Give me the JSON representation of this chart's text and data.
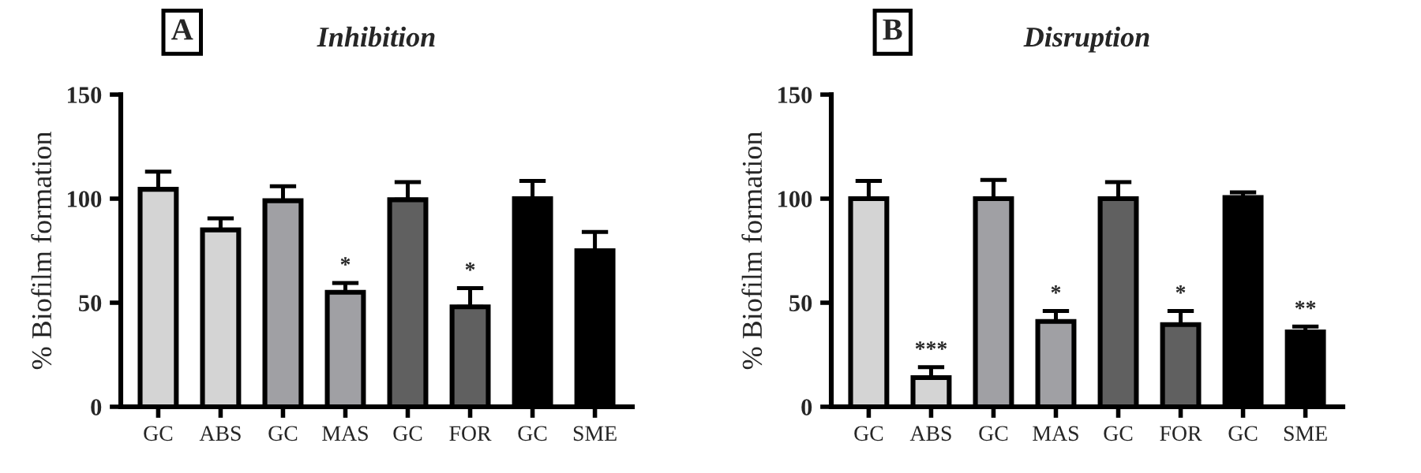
{
  "chart_data": [
    {
      "type": "bar",
      "title": "Inhibition",
      "ylabel": "% Biofilm formation",
      "categories": [
        "GC",
        "ABS",
        "GC",
        "MAS",
        "GC",
        "FOR",
        "GC",
        "SME"
      ],
      "values": [
        104.5,
        85,
        99,
        55,
        99.5,
        48,
        100,
        75
      ],
      "errors": [
        [
          104.5,
          113
        ],
        [
          85,
          90.5
        ],
        [
          99,
          106
        ],
        [
          55,
          59.5
        ],
        [
          99.5,
          108
        ],
        [
          48,
          57
        ],
        [
          100,
          108.5
        ],
        [
          75,
          84
        ]
      ],
      "colors": [
        "#d4d4d4",
        "#d4d4d4",
        "#a0a0a4",
        "#a0a0a4",
        "#606060",
        "#606060",
        "#000000",
        "#000000"
      ],
      "ylim": [
        0,
        150
      ],
      "yticks": [
        0,
        50,
        100,
        150
      ],
      "grid": false,
      "legend": false,
      "annotations": [
        "A",
        {
          "text": "*",
          "x": "MAS",
          "y": 59.5
        },
        {
          "text": "*",
          "x": "FOR",
          "y": 57
        }
      ]
    },
    {
      "type": "bar",
      "title": "Disruption",
      "ylabel": "% Biofilm formation",
      "categories": [
        "GC",
        "ABS",
        "GC",
        "MAS",
        "GC",
        "FOR",
        "GC",
        "SME"
      ],
      "values": [
        100,
        14,
        100,
        41,
        100,
        39.5,
        100.5,
        36
      ],
      "errors": [
        [
          100,
          108.5
        ],
        [
          14,
          19
        ],
        [
          100,
          109
        ],
        [
          41,
          46
        ],
        [
          100,
          108
        ],
        [
          39.5,
          46
        ],
        [
          100.5,
          103
        ],
        [
          36,
          38.5
        ]
      ],
      "colors": [
        "#d4d4d4",
        "#d4d4d4",
        "#a0a0a4",
        "#a0a0a4",
        "#606060",
        "#606060",
        "#000000",
        "#000000"
      ],
      "ylim": [
        0,
        150
      ],
      "yticks": [
        0,
        50,
        100,
        150
      ],
      "grid": false,
      "legend": false,
      "annotations": [
        "B",
        {
          "text": "***",
          "x": "ABS",
          "y": 19
        },
        {
          "text": "*",
          "x": "MAS",
          "y": 46
        },
        {
          "text": "*",
          "x": "FOR",
          "y": 46
        },
        {
          "text": "**",
          "x": "SME",
          "y": 38.5
        }
      ]
    }
  ]
}
